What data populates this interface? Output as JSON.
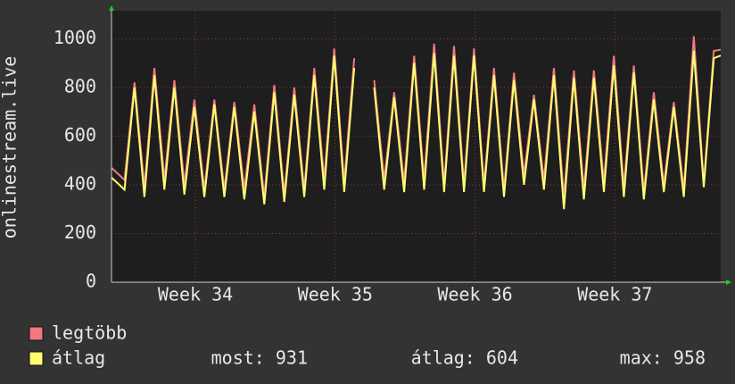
{
  "chart_data": {
    "type": "line",
    "y_label": "onlinestream.live",
    "x": [
      0,
      0.65,
      1.15,
      1.65,
      2.15,
      2.65,
      3.15,
      3.65,
      4.15,
      4.65,
      5.15,
      5.65,
      6.15,
      6.65,
      7.15,
      7.65,
      8.15,
      8.65,
      9.15,
      9.65,
      10.15,
      10.65,
      11.15,
      11.65,
      12.15,
      12.65,
      13.15,
      13.65,
      14.15,
      14.65,
      15.15,
      15.65,
      16.15,
      16.65,
      17.15,
      17.65,
      18.15,
      18.65,
      19.15,
      19.65,
      20.15,
      20.65,
      21.15,
      21.65,
      22.15,
      22.65,
      23.15,
      23.65,
      24.15,
      24.65,
      25.15,
      25.65,
      26.15,
      26.65,
      27.15,
      27.65,
      28.15,
      28.65,
      29.15,
      29.65,
      30.15,
      30.5
    ],
    "series": [
      {
        "name": "legtöbb",
        "color": "#f07880",
        "values": [
          470,
          420,
          820,
          390,
          880,
          420,
          830,
          400,
          750,
          380,
          750,
          380,
          740,
          380,
          730,
          350,
          810,
          360,
          800,
          380,
          880,
          420,
          960,
          410,
          920,
          null,
          830,
          420,
          780,
          410,
          930,
          420,
          980,
          400,
          970,
          400,
          960,
          400,
          880,
          380,
          860,
          440,
          770,
          420,
          880,
          350,
          870,
          380,
          870,
          410,
          930,
          390,
          890,
          370,
          780,
          400,
          740,
          380,
          1010,
          410,
          950,
          955
        ]
      },
      {
        "name": "átlag",
        "color": "#ffff70",
        "values": [
          430,
          380,
          800,
          350,
          850,
          380,
          800,
          360,
          720,
          350,
          730,
          350,
          720,
          340,
          700,
          320,
          780,
          330,
          770,
          350,
          850,
          380,
          930,
          370,
          880,
          null,
          800,
          380,
          760,
          370,
          900,
          380,
          940,
          370,
          930,
          370,
          930,
          370,
          850,
          350,
          830,
          400,
          750,
          380,
          850,
          300,
          840,
          340,
          840,
          370,
          890,
          350,
          860,
          340,
          750,
          370,
          720,
          350,
          950,
          390,
          920,
          931
        ]
      }
    ],
    "xlim": [
      0,
      30.5
    ],
    "xticks": [
      {
        "value": 4.2,
        "label": "Week 34"
      },
      {
        "value": 11.2,
        "label": "Week 35"
      },
      {
        "value": 18.2,
        "label": "Week 36"
      },
      {
        "value": 25.2,
        "label": "Week 37"
      }
    ],
    "ylim": [
      0,
      1115
    ],
    "yticks": [
      0,
      200,
      400,
      600,
      800,
      1000
    ],
    "grid": true,
    "legend_stats": [
      "most: 931",
      "átlag: 604",
      "max: 958"
    ]
  }
}
